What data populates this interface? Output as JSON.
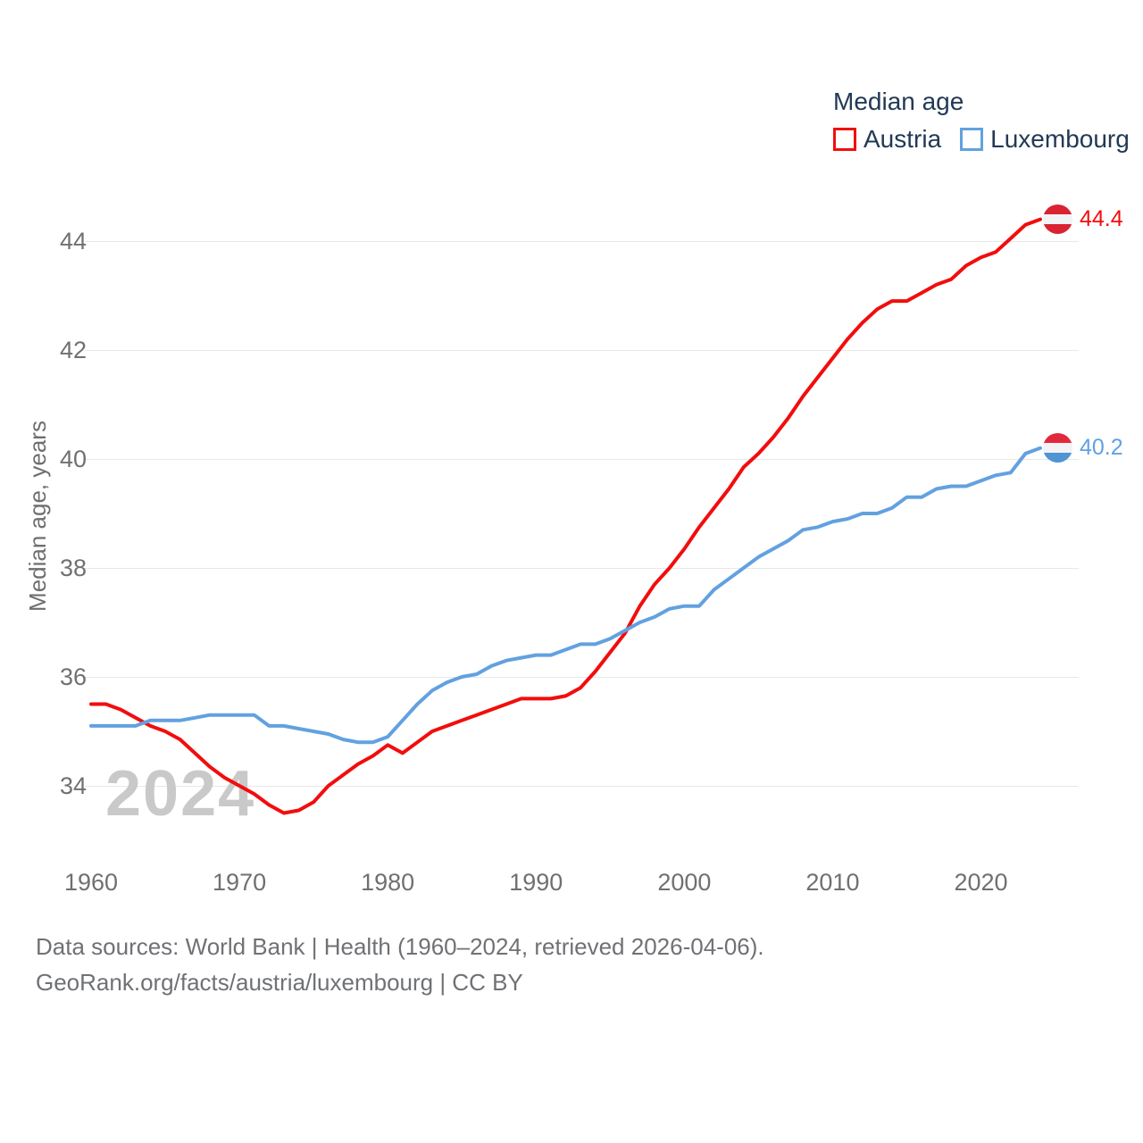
{
  "legend": {
    "title": "Median age",
    "items": [
      {
        "label": "Austria"
      },
      {
        "label": "Luxembourg"
      }
    ]
  },
  "watermark": "2024",
  "y_axis": {
    "title": "Median age, years"
  },
  "end_labels": [
    {
      "series": "Austria",
      "value": "44.4",
      "flag": "austria-flag"
    },
    {
      "series": "Luxembourg",
      "value": "40.2",
      "flag": "luxembourg-flag"
    }
  ],
  "footer": {
    "line1": "Data sources: World Bank | Health (1960–2024, retrieved 2026-04-06).",
    "line2": "GeoRank.org/facts/austria/luxembourg | CC BY"
  },
  "colors": {
    "austria": "#f20d0d",
    "luxembourg": "#62a1e0",
    "dark_text": "#223955",
    "tick_text": "#707070",
    "gridline": "#e8e8e8",
    "watermark": "#c9c9c9"
  },
  "chart_data": {
    "type": "line",
    "title": "Median age",
    "xlabel": "",
    "ylabel": "Median age, years",
    "years": {
      "start": 1960,
      "end": 2024,
      "step": 1
    },
    "xticks": [
      1960,
      1970,
      1980,
      1990,
      2000,
      2010,
      2020
    ],
    "yticks": [
      34,
      36,
      38,
      40,
      42,
      44
    ],
    "ylim": [
      33.2,
      44.9
    ],
    "grid": "horizontal",
    "legend_position": "top-right",
    "series": [
      {
        "name": "Austria",
        "color": "#f20d0d",
        "end_label": "44.4",
        "values": [
          35.5,
          35.5,
          35.4,
          35.25,
          35.1,
          35.0,
          34.85,
          34.6,
          34.35,
          34.15,
          34.0,
          33.85,
          33.65,
          33.5,
          33.55,
          33.7,
          34.0,
          34.2,
          34.4,
          34.55,
          34.75,
          34.6,
          34.8,
          35.0,
          35.1,
          35.2,
          35.3,
          35.4,
          35.5,
          35.6,
          35.6,
          35.6,
          35.65,
          35.8,
          36.1,
          36.45,
          36.8,
          37.3,
          37.7,
          38.0,
          38.35,
          38.75,
          39.1,
          39.45,
          39.85,
          40.1,
          40.4,
          40.75,
          41.15,
          41.5,
          41.85,
          42.2,
          42.5,
          42.75,
          42.9,
          42.9,
          43.05,
          43.2,
          43.3,
          43.55,
          43.7,
          43.8,
          44.05,
          44.3,
          44.4
        ]
      },
      {
        "name": "Luxembourg",
        "color": "#62a1e0",
        "end_label": "40.2",
        "values": [
          35.1,
          35.1,
          35.1,
          35.1,
          35.2,
          35.2,
          35.2,
          35.25,
          35.3,
          35.3,
          35.3,
          35.3,
          35.1,
          35.1,
          35.05,
          35.0,
          34.95,
          34.85,
          34.8,
          34.8,
          34.9,
          35.2,
          35.5,
          35.75,
          35.9,
          36.0,
          36.05,
          36.2,
          36.3,
          36.35,
          36.4,
          36.4,
          36.5,
          36.6,
          36.6,
          36.7,
          36.85,
          37.0,
          37.1,
          37.25,
          37.3,
          37.3,
          37.6,
          37.8,
          38.0,
          38.2,
          38.35,
          38.5,
          38.7,
          38.75,
          38.85,
          38.9,
          39.0,
          39.0,
          39.1,
          39.3,
          39.3,
          39.45,
          39.5,
          39.5,
          39.6,
          39.7,
          39.75,
          40.1,
          40.2
        ]
      }
    ]
  }
}
